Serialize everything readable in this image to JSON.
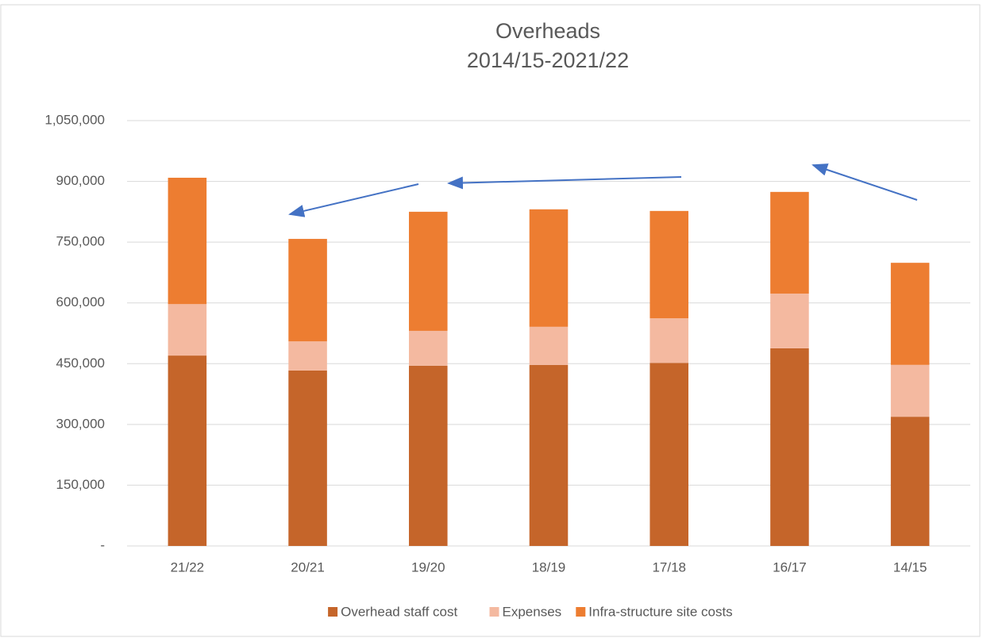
{
  "chart_data": {
    "type": "stacked_bar",
    "title": "Overheads",
    "subtitle": "2014/15-2021/22",
    "categories": [
      "21/22",
      "20/21",
      "19/20",
      "18/19",
      "17/18",
      "16/17",
      "14/15"
    ],
    "series": [
      {
        "name": "Overhead staff cost",
        "color": "#c5652a",
        "values": [
          470000,
          433000,
          445000,
          447000,
          452000,
          488000,
          319000
        ]
      },
      {
        "name": "Expenses",
        "color": "#f4b9a0",
        "values": [
          127000,
          72000,
          86000,
          94000,
          110000,
          135000,
          128000
        ]
      },
      {
        "name": "Infra-structure site costs",
        "color": "#ed7d31",
        "values": [
          312000,
          253000,
          294000,
          290000,
          265000,
          251000,
          252000
        ]
      }
    ],
    "ylim": [
      0,
      1050000
    ],
    "yticks": [
      {
        "value": 0,
        "label": "-"
      },
      {
        "value": 150000,
        "label": "150,000"
      },
      {
        "value": 300000,
        "label": "300,000"
      },
      {
        "value": 450000,
        "label": "450,000"
      },
      {
        "value": 600000,
        "label": "600,000"
      },
      {
        "value": 750000,
        "label": "750,000"
      },
      {
        "value": 900000,
        "label": "900,000"
      },
      {
        "value": 1050000,
        "label": "1,050,000"
      }
    ],
    "grid": true,
    "legend": "bottom"
  }
}
